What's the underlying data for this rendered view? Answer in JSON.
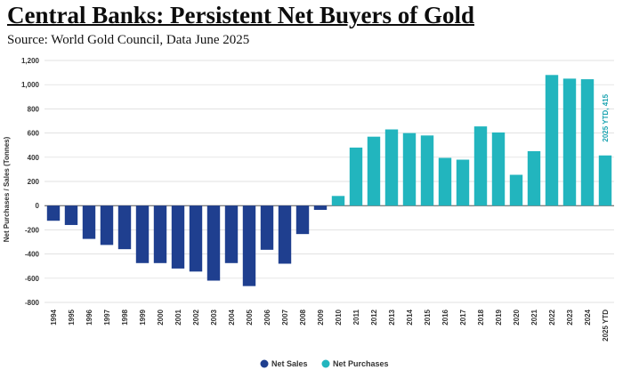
{
  "header": {
    "title": "Central Banks: Persistent Net Buyers of Gold",
    "subtitle": "Source: World Gold Council, Data June 2025"
  },
  "colors": {
    "net_sales": "#1f3f8f",
    "net_purchases": "#22b5be",
    "grid": "#d9d9d9",
    "zero_line": "#555555"
  },
  "chart_data": {
    "type": "bar",
    "ylabel": "Net Purchases / Sales (Tonnes)",
    "ylim": [
      -800,
      1200
    ],
    "yticks": [
      -800,
      -600,
      -400,
      -200,
      0,
      200,
      400,
      600,
      800,
      1000,
      1200
    ],
    "ytick_labels": [
      "-800",
      "-600",
      "-400",
      "-200",
      "0",
      "200",
      "400",
      "600",
      "800",
      "1,000",
      "1,200"
    ],
    "grid": true,
    "categories": [
      "1994",
      "1995",
      "1996",
      "1997",
      "1998",
      "1999",
      "2000",
      "2001",
      "2002",
      "2003",
      "2004",
      "2005",
      "2006",
      "2007",
      "2008",
      "2009",
      "2010",
      "2011",
      "2012",
      "2013",
      "2014",
      "2015",
      "2016",
      "2017",
      "2018",
      "2019",
      "2020",
      "2021",
      "2022",
      "2023",
      "2024",
      "2025 YTD"
    ],
    "values": [
      -125,
      -160,
      -275,
      -325,
      -360,
      -475,
      -475,
      -520,
      -545,
      -620,
      -475,
      -665,
      -365,
      -480,
      -235,
      -35,
      80,
      480,
      570,
      630,
      600,
      580,
      395,
      380,
      655,
      605,
      255,
      450,
      1080,
      1050,
      1045,
      415
    ],
    "series": [
      {
        "name": "Net Sales",
        "color": "#1f3f8f"
      },
      {
        "name": "Net Purchases",
        "color": "#22b5be"
      }
    ],
    "annotation": "2025 YTD, 415",
    "legend_position": "bottom"
  }
}
